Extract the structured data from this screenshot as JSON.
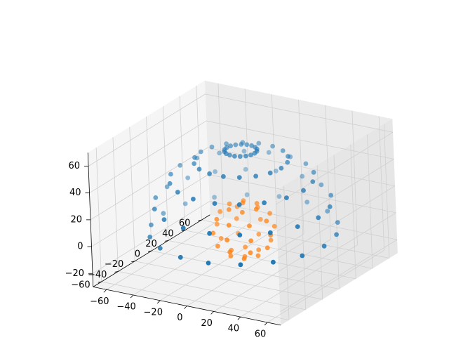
{
  "chart_data": {
    "type": "scatter",
    "projection": "3d",
    "title": "",
    "xlabel": "",
    "ylabel": "",
    "zlabel": "",
    "xlim": [
      -70,
      70
    ],
    "ylim": [
      -70,
      70
    ],
    "zlim": [
      -30,
      70
    ],
    "x_ticks": [
      -60,
      -40,
      -20,
      0,
      20,
      40,
      60
    ],
    "y_ticks": [
      -60,
      -40,
      -20,
      0,
      20,
      40,
      60
    ],
    "z_ticks": [
      -20,
      0,
      20,
      40,
      60
    ],
    "x_tick_labels": [
      "−60",
      "−40",
      "−20",
      "0",
      "20",
      "40",
      "60"
    ],
    "y_tick_labels": [
      "−60",
      "−40",
      "−20",
      "0",
      "20",
      "40",
      "60"
    ],
    "z_tick_labels": [
      "−20",
      "0",
      "20",
      "40",
      "60"
    ],
    "grid": true,
    "legend": "none",
    "series": [
      {
        "color": "#1f77b4",
        "shape": "upper hemisphere (radius ~60, centered at origin)",
        "points": [
          [
            60,
            0,
            0
          ],
          [
            56.4,
            20.5,
            0
          ],
          [
            46,
            38.6,
            0
          ],
          [
            30,
            52,
            0
          ],
          [
            10.4,
            59.1,
            0
          ],
          [
            -10.4,
            59.1,
            0
          ],
          [
            -30,
            52,
            0
          ],
          [
            -46,
            38.6,
            0
          ],
          [
            -56.4,
            20.5,
            0
          ],
          [
            -60,
            0,
            0
          ],
          [
            -56.4,
            -20.5,
            0
          ],
          [
            -46,
            -38.6,
            0
          ],
          [
            -30,
            -52,
            0
          ],
          [
            -10.4,
            -59.1,
            0
          ],
          [
            10.4,
            -59.1,
            0
          ],
          [
            30,
            -52,
            0
          ],
          [
            46,
            -38.6,
            0
          ],
          [
            56.4,
            -20.5,
            0
          ],
          [
            56.4,
            0,
            20.5
          ],
          [
            53,
            19.3,
            20.5
          ],
          [
            43.2,
            36.3,
            20.5
          ],
          [
            28.2,
            48.8,
            20.5
          ],
          [
            9.8,
            55.5,
            20.5
          ],
          [
            -9.8,
            55.5,
            20.5
          ],
          [
            -28.2,
            48.8,
            20.5
          ],
          [
            -43.2,
            36.3,
            20.5
          ],
          [
            -53,
            19.3,
            20.5
          ],
          [
            -56.4,
            0,
            20.5
          ],
          [
            -53,
            -19.3,
            20.5
          ],
          [
            -43.2,
            -36.3,
            20.5
          ],
          [
            -28.2,
            -48.8,
            20.5
          ],
          [
            -9.8,
            -55.5,
            20.5
          ],
          [
            9.8,
            -55.5,
            20.5
          ],
          [
            28.2,
            -48.8,
            20.5
          ],
          [
            43.2,
            -36.3,
            20.5
          ],
          [
            53,
            -19.3,
            20.5
          ],
          [
            46,
            0,
            38.6
          ],
          [
            43.2,
            15.7,
            38.6
          ],
          [
            35.2,
            29.6,
            38.6
          ],
          [
            23,
            39.8,
            38.6
          ],
          [
            8,
            45.3,
            38.6
          ],
          [
            -8,
            45.3,
            38.6
          ],
          [
            -23,
            39.8,
            38.6
          ],
          [
            -35.2,
            29.6,
            38.6
          ],
          [
            -43.2,
            15.7,
            38.6
          ],
          [
            -46,
            0,
            38.6
          ],
          [
            -43.2,
            -15.7,
            38.6
          ],
          [
            -35.2,
            -29.6,
            38.6
          ],
          [
            -23,
            -39.8,
            38.6
          ],
          [
            -8,
            -45.3,
            38.6
          ],
          [
            8,
            -45.3,
            38.6
          ],
          [
            23,
            -39.8,
            38.6
          ],
          [
            35.2,
            -29.6,
            38.6
          ],
          [
            43.2,
            -15.7,
            38.6
          ],
          [
            30,
            0,
            52
          ],
          [
            28.2,
            10.3,
            52
          ],
          [
            23,
            19.3,
            52
          ],
          [
            15,
            26,
            52
          ],
          [
            5.2,
            29.5,
            52
          ],
          [
            -5.2,
            29.5,
            52
          ],
          [
            -15,
            26,
            52
          ],
          [
            -23,
            19.3,
            52
          ],
          [
            -28.2,
            10.3,
            52
          ],
          [
            -30,
            0,
            52
          ],
          [
            -28.2,
            -10.3,
            52
          ],
          [
            -23,
            -19.3,
            52
          ],
          [
            -15,
            -26,
            52
          ],
          [
            -5.2,
            -29.5,
            52
          ],
          [
            5.2,
            -29.5,
            52
          ],
          [
            15,
            -26,
            52
          ],
          [
            23,
            -19.3,
            52
          ],
          [
            28.2,
            -10.3,
            52
          ],
          [
            10.4,
            0,
            59.1
          ],
          [
            9.8,
            3.6,
            59.1
          ],
          [
            8,
            6.7,
            59.1
          ],
          [
            5.2,
            9,
            59.1
          ],
          [
            1.8,
            10.2,
            59.1
          ],
          [
            -1.8,
            10.2,
            59.1
          ],
          [
            -5.2,
            9,
            59.1
          ],
          [
            -8,
            6.7,
            59.1
          ],
          [
            -9.8,
            3.6,
            59.1
          ],
          [
            -10.4,
            0,
            59.1
          ],
          [
            -9.8,
            -3.6,
            59.1
          ],
          [
            -8,
            -6.7,
            59.1
          ],
          [
            -5.2,
            -9,
            59.1
          ],
          [
            -1.8,
            -10.2,
            59.1
          ],
          [
            1.8,
            -10.2,
            59.1
          ],
          [
            5.2,
            -9,
            59.1
          ],
          [
            8,
            -6.7,
            59.1
          ],
          [
            9.8,
            -3.6,
            59.1
          ]
        ]
      },
      {
        "color": "#ff7f0e",
        "shape": "small sphere (radius ~20, centered at origin)",
        "points": [
          [
            0,
            0,
            20
          ],
          [
            0,
            0,
            -20
          ],
          [
            10,
            0,
            17.3
          ],
          [
            5,
            8.7,
            17.3
          ],
          [
            -5,
            8.7,
            17.3
          ],
          [
            -10,
            0,
            17.3
          ],
          [
            -5,
            -8.7,
            17.3
          ],
          [
            5,
            -8.7,
            17.3
          ],
          [
            17.3,
            0,
            10
          ],
          [
            12.2,
            12.2,
            10
          ],
          [
            0,
            17.3,
            10
          ],
          [
            -12.2,
            12.2,
            10
          ],
          [
            -17.3,
            0,
            10
          ],
          [
            -12.2,
            -12.2,
            10
          ],
          [
            0,
            -17.3,
            10
          ],
          [
            12.2,
            -12.2,
            10
          ],
          [
            20,
            0,
            0
          ],
          [
            14.1,
            14.1,
            0
          ],
          [
            0,
            20,
            0
          ],
          [
            -14.1,
            14.1,
            0
          ],
          [
            -20,
            0,
            0
          ],
          [
            -14.1,
            -14.1,
            0
          ],
          [
            0,
            -20,
            0
          ],
          [
            14.1,
            -14.1,
            0
          ],
          [
            17.3,
            0,
            -10
          ],
          [
            12.2,
            12.2,
            -10
          ],
          [
            0,
            17.3,
            -10
          ],
          [
            -12.2,
            12.2,
            -10
          ],
          [
            -17.3,
            0,
            -10
          ],
          [
            -12.2,
            -12.2,
            -10
          ],
          [
            0,
            -17.3,
            -10
          ],
          [
            12.2,
            -12.2,
            -10
          ],
          [
            10,
            0,
            -17.3
          ],
          [
            5,
            8.7,
            -17.3
          ],
          [
            -5,
            8.7,
            -17.3
          ],
          [
            -10,
            0,
            -17.3
          ],
          [
            -5,
            -8.7,
            -17.3
          ],
          [
            5,
            -8.7,
            -17.3
          ]
        ]
      }
    ]
  }
}
